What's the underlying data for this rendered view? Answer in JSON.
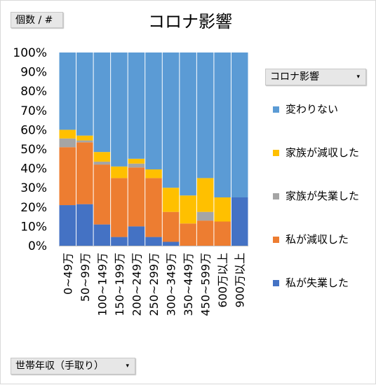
{
  "field_buttons": {
    "values": "個数 / #",
    "legend_field": "コロナ影響",
    "axis_field": "世帯年収（手取り）",
    "dropdown_glyph": "▾"
  },
  "colors": {
    "変わりない": "#5b9bd5",
    "家族が減収した": "#ffc000",
    "家族が失業した": "#a5a5a5",
    "私が減収した": "#ed7d31",
    "私が失業した": "#4472c4"
  },
  "chart_data": {
    "type": "bar",
    "stacked": "percent",
    "title": "コロナ影響",
    "xlabel": "",
    "ylabel": "",
    "ylim": [
      0,
      100
    ],
    "y_ticks": [
      "0%",
      "10%",
      "20%",
      "30%",
      "40%",
      "50%",
      "60%",
      "70%",
      "80%",
      "90%",
      "100%"
    ],
    "grid": false,
    "legend_position": "right",
    "categories": [
      "0~49万",
      "50~99万",
      "100~149万",
      "150~199万",
      "200~249万",
      "250~299万",
      "300~349万",
      "350~449万",
      "450~599万",
      "600万以上",
      "900万以上"
    ],
    "series": [
      {
        "name": "私が失業した",
        "values": [
          21,
          21.5,
          11,
          4.5,
          10,
          4.5,
          2,
          0,
          0,
          0,
          25
        ]
      },
      {
        "name": "私が減収した",
        "values": [
          30,
          32,
          31,
          30.5,
          30.5,
          30.5,
          15.5,
          11.5,
          13,
          12.5,
          0
        ]
      },
      {
        "name": "家族が失業した",
        "values": [
          4.5,
          1,
          1.5,
          0,
          2,
          0,
          0,
          0,
          4.5,
          0,
          0
        ]
      },
      {
        "name": "家族が減収した",
        "values": [
          4.5,
          2.5,
          5,
          6,
          2.5,
          4.5,
          12.5,
          14.5,
          17.5,
          12.5,
          0
        ]
      },
      {
        "name": "変わりない",
        "values": [
          40,
          43,
          51.5,
          59,
          55,
          60.5,
          70,
          74,
          65,
          75,
          75
        ]
      }
    ],
    "legend_order": [
      "変わりない",
      "家族が減収した",
      "家族が失業した",
      "私が減収した",
      "私が失業した"
    ]
  }
}
